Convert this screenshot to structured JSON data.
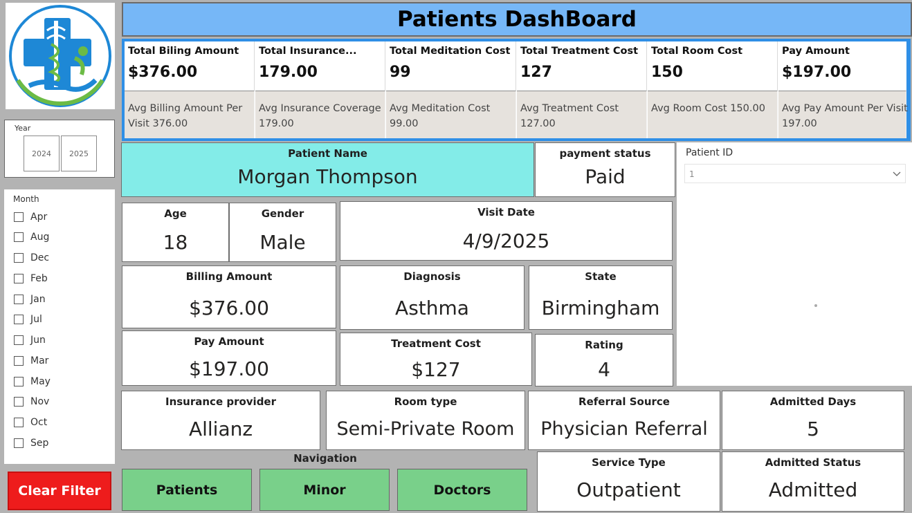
{
  "header": {
    "title": "Patients DashBoard"
  },
  "slicers": {
    "year": {
      "label": "Year",
      "options": [
        "2024",
        "2025"
      ]
    },
    "month": {
      "label": "Month",
      "options": [
        "Apr",
        "Aug",
        "Dec",
        "Feb",
        "Jan",
        "Jul",
        "Jun",
        "Mar",
        "May",
        "Nov",
        "Oct",
        "Sep"
      ]
    },
    "patient_id": {
      "label": "Patient ID",
      "value": "1"
    },
    "clear_label": "Clear Filter"
  },
  "kpis": [
    {
      "title": "Total Biling Amount",
      "value": "$376.00",
      "sub": "Avg Billing Amount Per Visit 376.00"
    },
    {
      "title": "Total Insurance...",
      "value": "179.00",
      "sub": "Avg Insurance Coverage 179.00"
    },
    {
      "title": "Total Meditation Cost",
      "value": "99",
      "sub": "Avg Meditation Cost 99.00"
    },
    {
      "title": "Total Treatment Cost",
      "value": "127",
      "sub": "Avg Treatment Cost 127.00"
    },
    {
      "title": "Total Room Cost",
      "value": "150",
      "sub": "Avg Room Cost 150.00"
    },
    {
      "title": "Pay Amount",
      "value": "$197.00",
      "sub": "Avg Pay Amount Per Visit 197.00"
    }
  ],
  "cards": {
    "patient_name": {
      "title": "Patient Name",
      "value": "Morgan Thompson"
    },
    "payment_status": {
      "title": "payment status",
      "value": "Paid"
    },
    "age": {
      "title": "Age",
      "value": "18"
    },
    "gender": {
      "title": "Gender",
      "value": "Male"
    },
    "visit_date": {
      "title": "Visit Date",
      "value": "4/9/2025"
    },
    "billing_amount": {
      "title": "Billing Amount",
      "value": "$376.00"
    },
    "diagnosis": {
      "title": "Diagnosis",
      "value": "Asthma"
    },
    "state": {
      "title": "State",
      "value": "Birmingham"
    },
    "pay_amount": {
      "title": "Pay Amount",
      "value": "$197.00"
    },
    "treatment_cost": {
      "title": "Treatment Cost",
      "value": "$127"
    },
    "rating": {
      "title": "Rating",
      "value": "4"
    },
    "insurance_provider": {
      "title": "Insurance provider",
      "value": "Allianz"
    },
    "room_type": {
      "title": "Room type",
      "value": "Semi-Private Room"
    },
    "referral_source": {
      "title": "Referral Source",
      "value": "Physician Referral"
    },
    "admitted_days": {
      "title": "Admitted Days",
      "value": "5"
    },
    "service_type": {
      "title": "Service Type",
      "value": "Outpatient"
    },
    "admitted_status": {
      "title": "Admitted Status",
      "value": "Admitted"
    }
  },
  "navigation": {
    "label": "Navigation",
    "buttons": [
      "Patients",
      "Minor",
      "Doctors"
    ]
  },
  "colors": {
    "header_bg": "#76b7f7",
    "kpi_border": "#2f8fe6",
    "patient_name_bg": "#83ece8",
    "nav_button_bg": "#79d08a",
    "clear_button_bg": "#ee1c1c",
    "logo_blue": "#1e88d6",
    "logo_green": "#6cbb45"
  }
}
